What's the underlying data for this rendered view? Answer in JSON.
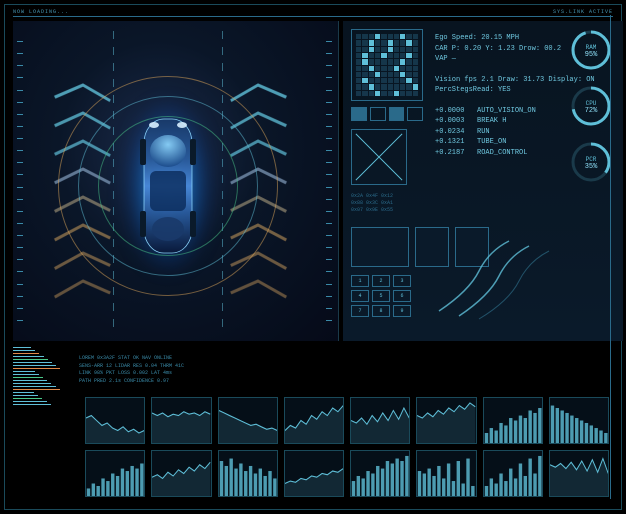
{
  "colors": {
    "bg": "#000000",
    "panel_bg": "#0a1628",
    "accent": "#5fbfd8",
    "accent_bright": "#8fe0f8",
    "accent_dim": "#2a6a8a",
    "border": "#1a4a5a",
    "glow_inner": "#3cb4ff",
    "glow_outer": "#0a3c8c",
    "warn": "#e08a4a",
    "green": "#4ac88a"
  },
  "topbar": {
    "left": "NOW LOADING...",
    "right": "SYS.LINK ACTIVE"
  },
  "vehicle_view": {
    "chevron_color_top": "#5fbfd8",
    "chevron_color_bottom": "#c89a5a",
    "sensor_arcs": [
      {
        "color": "#4ac88a",
        "radius": 70
      },
      {
        "color": "#5fbfd8",
        "radius": 90
      },
      {
        "color": "#e0a85a",
        "radius": 110
      }
    ]
  },
  "telemetry": {
    "group1": [
      "Ego Speed: 20.15 MPH",
      "CAR P: 0.20 Y: 1.23 Drow: 00.2",
      "VAP —"
    ],
    "group2": [
      "Vision fps 2.1 Draw: 31.73 Display: ON",
      "PercStegsRead: YES"
    ],
    "group3": [
      "+0.0000   AUTO_VISION_ON",
      "+0.0003   BREAK H",
      "+0.0234   RUN",
      "+0.1321   TUBE_ON",
      "+0.2187   ROAD_CONTROL"
    ]
  },
  "gauges": [
    {
      "label": "RAM",
      "value": 95,
      "display": "95%",
      "color": "#5fbfd8"
    },
    {
      "label": "CPU",
      "value": 72,
      "display": "72%",
      "color": "#5fbfd8"
    },
    {
      "label": "PCR",
      "value": 35,
      "display": "35%",
      "color": "#5fbfd8"
    }
  ],
  "grid_widget": {
    "rows": 10,
    "cols": 10,
    "on_cells": [
      3,
      7,
      12,
      15,
      18,
      22,
      25,
      31,
      34,
      38,
      41,
      47,
      52,
      56,
      63,
      67,
      71,
      78,
      82,
      89,
      93,
      96
    ]
  },
  "keypad": [
    "1",
    "2",
    "3",
    "4",
    "5",
    "6",
    "7",
    "8",
    "9"
  ],
  "readout_lines": [
    "LOREM 0x3A2F  STAT OK  NAV ONLINE",
    "SENS-ARR 12  LIDAR RES 0.04  THRM 41C",
    "LINK 98%  PKT LOSS 0.002  LAT 4ms",
    "PATH PRED 2.1s  CONFIDENCE 0.97"
  ],
  "charts_row1": [
    {
      "type": "line",
      "color": "#5fbfd8",
      "points": [
        20,
        22,
        18,
        14,
        16,
        12,
        10,
        13,
        9,
        11,
        8,
        10
      ]
    },
    {
      "type": "line",
      "color": "#5fbfd8",
      "points": [
        24,
        22,
        24,
        21,
        23,
        22,
        25,
        23,
        24,
        22,
        25,
        23
      ]
    },
    {
      "type": "line",
      "color": "#5fbfd8",
      "points": [
        26,
        24,
        22,
        20,
        18,
        16,
        14,
        15,
        13,
        11,
        12,
        10
      ]
    },
    {
      "type": "line",
      "color": "#5fbfd8",
      "points": [
        10,
        14,
        12,
        18,
        15,
        22,
        19,
        25,
        22,
        28,
        25,
        30
      ]
    },
    {
      "type": "line",
      "color": "#5fbfd8",
      "points": [
        18,
        16,
        20,
        15,
        22,
        17,
        24,
        18,
        26,
        19,
        28,
        20
      ]
    },
    {
      "type": "line",
      "color": "#5fbfd8",
      "points": [
        22,
        20,
        24,
        21,
        26,
        23,
        28,
        25,
        30,
        27,
        32,
        29
      ]
    },
    {
      "type": "bar",
      "color": "#5fbfd8",
      "points": [
        8,
        12,
        10,
        16,
        14,
        20,
        18,
        22,
        20,
        26,
        24,
        28
      ]
    },
    {
      "type": "bar",
      "color": "#5fbfd8",
      "points": [
        30,
        28,
        26,
        24,
        22,
        20,
        18,
        16,
        14,
        12,
        10,
        8
      ]
    }
  ],
  "charts_row2": [
    {
      "type": "bar",
      "color": "#5fbfd8",
      "points": [
        6,
        10,
        8,
        14,
        12,
        18,
        16,
        22,
        20,
        24,
        22,
        26
      ]
    },
    {
      "type": "line",
      "color": "#5fbfd8",
      "points": [
        15,
        17,
        14,
        19,
        16,
        21,
        18,
        23,
        20,
        25,
        22,
        27
      ]
    },
    {
      "type": "bar",
      "color": "#5fbfd8",
      "points": [
        28,
        24,
        30,
        22,
        26,
        20,
        24,
        18,
        22,
        16,
        20,
        14
      ]
    },
    {
      "type": "line",
      "color": "#5fbfd8",
      "points": [
        10,
        12,
        11,
        14,
        13,
        16,
        15,
        18,
        17,
        20,
        19,
        22
      ]
    },
    {
      "type": "bar",
      "color": "#5fbfd8",
      "points": [
        12,
        16,
        14,
        20,
        18,
        24,
        22,
        28,
        26,
        30,
        28,
        32
      ]
    },
    {
      "type": "bar",
      "color": "#5fbfd8",
      "points": [
        20,
        18,
        22,
        16,
        24,
        14,
        26,
        12,
        28,
        10,
        30,
        8
      ]
    },
    {
      "type": "bar",
      "color": "#5fbfd8",
      "points": [
        8,
        14,
        10,
        18,
        12,
        22,
        14,
        26,
        16,
        30,
        18,
        32
      ]
    },
    {
      "type": "line",
      "color": "#5fbfd8",
      "points": [
        25,
        23,
        26,
        22,
        27,
        21,
        28,
        20,
        29,
        19,
        30,
        18
      ]
    }
  ],
  "left_readout_colors": [
    "#5fbfd8",
    "#5fbfd8",
    "#e08a4a",
    "#5fbfd8",
    "#4ac88a",
    "#5fbfd8",
    "#5fbfd8",
    "#e08a4a",
    "#5fbfd8",
    "#5fbfd8",
    "#4ac88a",
    "#5fbfd8",
    "#5fbfd8",
    "#5fbfd8",
    "#e08a4a",
    "#5fbfd8",
    "#5fbfd8",
    "#4ac88a",
    "#5fbfd8",
    "#5fbfd8"
  ]
}
